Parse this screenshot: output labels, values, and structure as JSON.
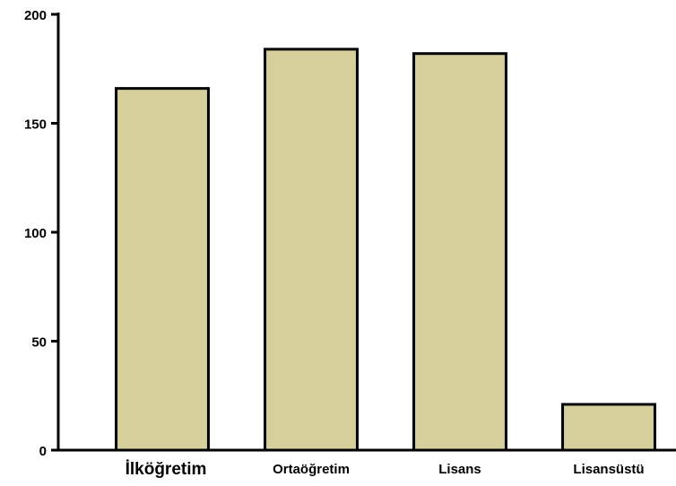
{
  "chart_data": {
    "type": "bar",
    "categories": [
      "İlköğretim",
      "Ortaöğretim",
      "Lisans",
      "Lisansüstü"
    ],
    "values": [
      166,
      184,
      182,
      21
    ],
    "color": "#d4cf9b",
    "ylim": [
      0,
      200
    ],
    "yticks": [
      0,
      50,
      100,
      150,
      200
    ],
    "grid": false
  }
}
